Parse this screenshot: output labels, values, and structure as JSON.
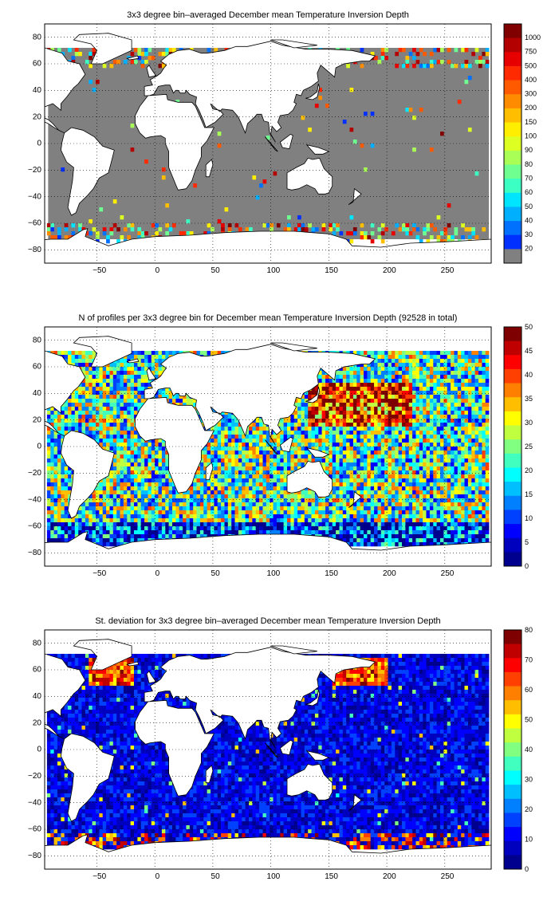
{
  "panels": [
    {
      "title": "3x3 degree bin–averaged December mean Temperature Inversion Depth",
      "x_ticks": [
        "−50",
        "0",
        "50",
        "100",
        "150",
        "200",
        "250"
      ],
      "y_ticks": [
        "80",
        "60",
        "40",
        "20",
        "0",
        "−20",
        "−40",
        "−60",
        "−80"
      ],
      "colorbar_ticks": [
        "1000",
        "750",
        "500",
        "400",
        "300",
        "200",
        "150",
        "100",
        "90",
        "80",
        "70",
        "60",
        "50",
        "40",
        "30",
        "20"
      ],
      "colorbar_colors": [
        "#800000",
        "#b30000",
        "#e60000",
        "#ff2a00",
        "#ff5a00",
        "#ff8c00",
        "#ffbf00",
        "#ffee00",
        "#ddff22",
        "#a9ff56",
        "#6fff90",
        "#3cffc3",
        "#00e5ff",
        "#00b0ff",
        "#0070ff",
        "#0030ff",
        "#808080"
      ],
      "colorbar_bottom": "#808080"
    },
    {
      "title": "N of profiles per 3x3 degree bin for December mean Temperature Inversion Depth  (92528 in total)",
      "x_ticks": [
        "−50",
        "0",
        "50",
        "100",
        "150",
        "200",
        "250"
      ],
      "y_ticks": [
        "80",
        "60",
        "40",
        "20",
        "0",
        "−20",
        "−40",
        "−60",
        "−80"
      ],
      "colorbar_ticks": [
        "50",
        "45",
        "40",
        "35",
        "30",
        "25",
        "20",
        "15",
        "10",
        "5",
        "0"
      ],
      "colorbar_colors": [
        "#7f0000",
        "#c00000",
        "#ff0000",
        "#ff4000",
        "#ff8000",
        "#ffbf00",
        "#ffff00",
        "#bfff40",
        "#80ff80",
        "#40ffbf",
        "#00ffff",
        "#00bfff",
        "#0080ff",
        "#0040ff",
        "#0000ff",
        "#0000bf",
        "#00008f"
      ]
    },
    {
      "title": "St. deviation for 3x3 degree bin–averaged December mean Temperature Inversion Depth",
      "x_ticks": [
        "−50",
        "0",
        "50",
        "100",
        "150",
        "200",
        "250"
      ],
      "y_ticks": [
        "80",
        "60",
        "40",
        "20",
        "0",
        "−20",
        "−40",
        "−60",
        "−80"
      ],
      "colorbar_ticks": [
        "80",
        "70",
        "60",
        "50",
        "40",
        "30",
        "20",
        "10",
        "0"
      ],
      "colorbar_colors": [
        "#7f0000",
        "#c00000",
        "#ff0000",
        "#ff4000",
        "#ff8000",
        "#ffbf00",
        "#ffff00",
        "#bfff40",
        "#80ff80",
        "#40ffbf",
        "#00ffff",
        "#00bfff",
        "#0080ff",
        "#0040ff",
        "#0000ff",
        "#0000bf",
        "#00008f"
      ]
    }
  ],
  "map": {
    "lon_range": [
      -95,
      290
    ],
    "lat_range": [
      -90,
      90
    ],
    "ocean_fill_panel1": "#808080",
    "grid_style": "dotted"
  }
}
